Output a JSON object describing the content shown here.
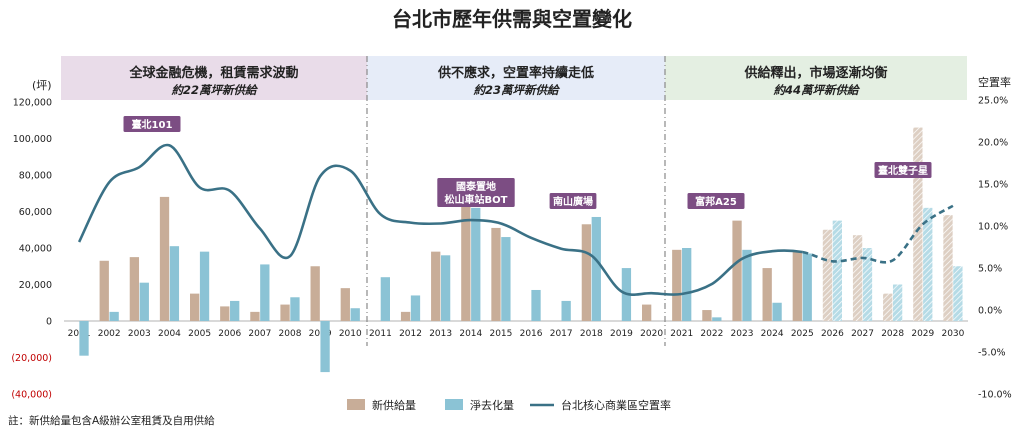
{
  "chart_data": {
    "type": "bar",
    "title": "台北市歷年供需與空置變化",
    "y_left_unit": "(坪)",
    "y_right_unit": "空置率",
    "y_left_ticks": [
      "120,000",
      "100,000",
      "80,000",
      "60,000",
      "40,000",
      "20,000",
      "0",
      "(20,000)",
      "(40,000)"
    ],
    "y_right_ticks": [
      "25.0%",
      "20.0%",
      "15.0%",
      "10.0%",
      "5.0%",
      "0.0%",
      "-5.0%",
      "-10.0%"
    ],
    "ylim_left": [
      -40000,
      120000
    ],
    "ylim_right": [
      -10,
      25
    ],
    "categories": [
      "2001",
      "2002",
      "2003",
      "2004",
      "2005",
      "2006",
      "2007",
      "2008",
      "2009",
      "2010",
      "2011",
      "2012",
      "2013",
      "2014",
      "2015",
      "2016",
      "2017",
      "2018",
      "2019",
      "2020",
      "2021",
      "2022",
      "2023",
      "2024",
      "2025",
      "2026",
      "2027",
      "2028",
      "2029",
      "2030"
    ],
    "forecast_from": "2026",
    "series": [
      {
        "name": "新供給量",
        "type": "bar",
        "axis": "left",
        "color": "#c8ad98",
        "values": [
          0,
          33000,
          35000,
          68000,
          15000,
          8000,
          5000,
          9000,
          30000,
          18000,
          0,
          5000,
          38000,
          72000,
          51000,
          0,
          0,
          53000,
          0,
          9000,
          39000,
          6000,
          55000,
          29000,
          38000,
          50000,
          47000,
          15000,
          106000,
          58000
        ]
      },
      {
        "name": "淨去化量",
        "type": "bar",
        "axis": "left",
        "color": "#8bc3d5",
        "values": [
          -19000,
          5000,
          21000,
          41000,
          38000,
          11000,
          31000,
          13000,
          -28000,
          7000,
          24000,
          14000,
          36000,
          62000,
          46000,
          17000,
          11000,
          57000,
          29000,
          0,
          40000,
          2000,
          39000,
          10000,
          37000,
          55000,
          40000,
          20000,
          62000,
          30000
        ]
      },
      {
        "name": "台北核心商業區空置率",
        "type": "line",
        "axis": "right",
        "color": "#3a7186",
        "values": [
          8.1,
          15.2,
          17.0,
          19.6,
          14.6,
          14.2,
          9.7,
          6.4,
          15.9,
          16.6,
          11.4,
          10.4,
          10.3,
          10.7,
          10.3,
          8.6,
          7.3,
          6.5,
          2.2,
          2.0,
          1.9,
          3.1,
          6.1,
          7.0,
          6.9,
          5.8,
          6.2,
          5.9,
          10.2,
          12.4
        ]
      }
    ],
    "phases": [
      {
        "title": "全球金融危機，租賃需求波動",
        "subtitle": "約22萬坪新供給",
        "color": "#e9dce9"
      },
      {
        "title": "供不應求，空置率持續走低",
        "subtitle": "約23萬坪新供給",
        "color": "#e6ecf8"
      },
      {
        "title": "供給釋出，市場逐漸均衡",
        "subtitle": "約44萬坪新供給",
        "color": "#e4efe2"
      }
    ],
    "landmarks": [
      {
        "year": "2004",
        "lines": [
          "臺北101"
        ]
      },
      {
        "year": "2015",
        "lines": [
          "國泰置地",
          "松山車站BOT"
        ]
      },
      {
        "year": "2018",
        "lines": [
          "南山廣場"
        ]
      },
      {
        "year": "2023",
        "lines": [
          "富邦A25"
        ]
      },
      {
        "year": "2029",
        "lines": [
          "臺北雙子星"
        ]
      }
    ],
    "note": "註：新供給量包含A級辦公室租賃及自用供給"
  }
}
